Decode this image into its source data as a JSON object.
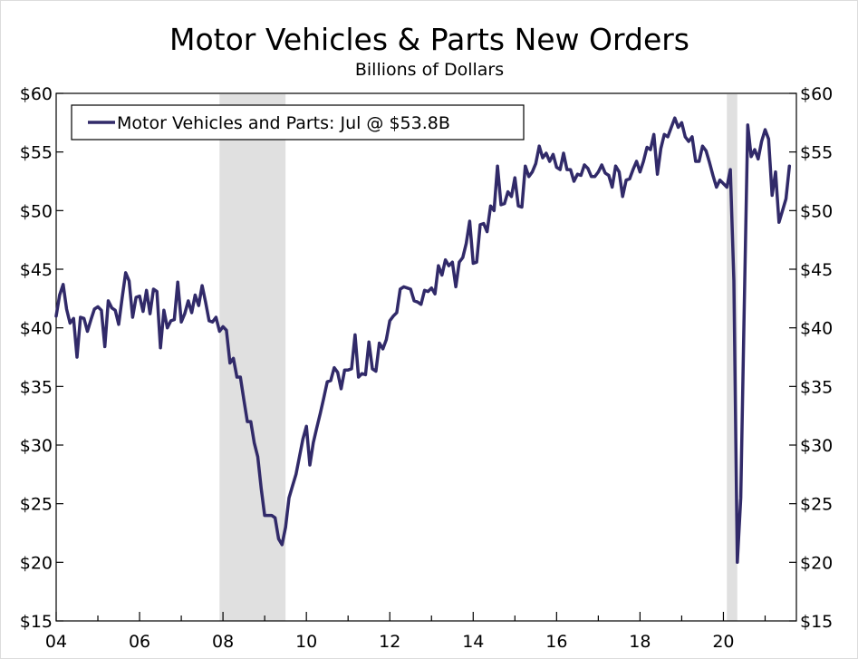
{
  "chart_data": {
    "type": "line",
    "title": "Motor Vehicles & Parts New Orders",
    "subtitle": "Billions of Dollars",
    "xlabel": "",
    "ylabel": "",
    "x_range": [
      2004.0,
      2021.75
    ],
    "ylim": [
      15,
      60
    ],
    "y_ticks": [
      15,
      20,
      25,
      30,
      35,
      40,
      45,
      50,
      55,
      60
    ],
    "y_tick_labels": [
      "$15",
      "$20",
      "$25",
      "$30",
      "$35",
      "$40",
      "$45",
      "$50",
      "$55",
      "$60"
    ],
    "x_ticks": [
      2004,
      2006,
      2008,
      2010,
      2012,
      2014,
      2016,
      2018,
      2020
    ],
    "x_tick_labels": [
      "04",
      "06",
      "08",
      "10",
      "12",
      "14",
      "16",
      "18",
      "20"
    ],
    "grid": false,
    "legend_position": "top-left",
    "colors": {
      "line": "#312a69",
      "recession": "#e0e0e0"
    },
    "recessions": [
      [
        2007.917,
        2009.5
      ],
      [
        2020.083,
        2020.333
      ]
    ],
    "series": [
      {
        "name": "Motor Vehicles and Parts",
        "legend_label": "Motor Vehicles and Parts: Jul @ $53.8B",
        "start": 2004.0,
        "step": 0.08333333,
        "values": [
          41.0,
          42.8,
          43.7,
          41.6,
          40.4,
          40.8,
          37.5,
          40.9,
          40.8,
          39.7,
          40.7,
          41.6,
          41.8,
          41.5,
          38.4,
          42.3,
          41.7,
          41.5,
          40.3,
          42.6,
          44.7,
          44.0,
          40.9,
          42.6,
          42.7,
          41.4,
          43.2,
          41.2,
          43.3,
          43.1,
          38.3,
          41.5,
          40.0,
          40.6,
          40.7,
          43.9,
          40.5,
          41.2,
          42.3,
          41.3,
          42.8,
          41.9,
          43.6,
          42.2,
          40.6,
          40.5,
          40.9,
          39.7,
          40.1,
          39.8,
          37.0,
          37.4,
          35.8,
          35.8,
          33.9,
          32.0,
          32.0,
          30.2,
          29.0,
          26.3,
          24.0,
          24.0,
          24.0,
          23.8,
          22.0,
          21.5,
          23.0,
          25.5,
          26.5,
          27.5,
          29.0,
          30.5,
          31.6,
          28.3,
          30.2,
          31.5,
          32.7,
          34.0,
          35.4,
          35.5,
          36.6,
          36.2,
          34.8,
          36.4,
          36.4,
          36.5,
          39.4,
          35.8,
          36.1,
          36.0,
          38.8,
          36.5,
          36.3,
          38.7,
          38.2,
          39.0,
          40.6,
          41.0,
          41.3,
          43.3,
          43.5,
          43.4,
          43.3,
          42.3,
          42.2,
          42.0,
          43.2,
          43.1,
          43.4,
          42.9,
          45.3,
          44.5,
          45.8,
          45.3,
          45.6,
          43.5,
          45.6,
          46.0,
          47.2,
          49.1,
          45.5,
          45.6,
          48.8,
          48.9,
          48.2,
          50.4,
          50.0,
          53.8,
          50.5,
          50.6,
          51.6,
          51.2,
          52.8,
          50.4,
          50.3,
          53.8,
          52.9,
          53.3,
          54.0,
          55.5,
          54.5,
          54.9,
          54.2,
          54.8,
          53.7,
          53.5,
          54.9,
          53.5,
          53.5,
          52.5,
          53.1,
          53.0,
          53.9,
          53.6,
          52.9,
          52.9,
          53.3,
          53.9,
          53.2,
          53.0,
          52.0,
          53.8,
          53.3,
          51.2,
          52.6,
          52.7,
          53.5,
          54.2,
          53.3,
          54.2,
          55.4,
          55.2,
          56.5,
          53.1,
          55.3,
          56.5,
          56.3,
          57.1,
          57.9,
          57.1,
          57.5,
          56.3,
          55.9,
          56.3,
          54.2,
          54.2,
          55.5,
          55.1,
          54.1,
          53.0,
          52.0,
          52.6,
          52.3,
          52.0,
          53.5,
          44.0,
          20.0,
          25.5,
          42.0,
          57.3,
          54.6,
          55.2,
          54.4,
          55.9,
          56.9,
          56.1,
          51.3,
          53.3,
          49.0,
          50.0,
          51.0,
          53.8
        ]
      }
    ]
  }
}
